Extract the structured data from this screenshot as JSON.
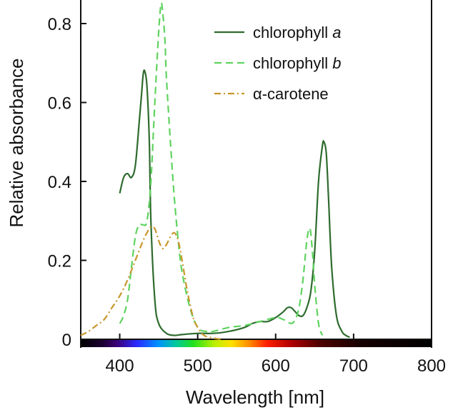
{
  "chart_data": {
    "type": "line",
    "title": "",
    "xlabel": "Wavelength [nm]",
    "ylabel": "Relative absorbance",
    "xlim": [
      350,
      800
    ],
    "ylim": [
      0,
      0.86
    ],
    "x_ticks": [
      400,
      500,
      600,
      700,
      800
    ],
    "x_tick_labels": [
      "400",
      "500",
      "600",
      "700",
      "800"
    ],
    "y_ticks": [
      0,
      0.2,
      0.4,
      0.6,
      0.8
    ],
    "y_tick_labels": [
      "0",
      "0.2",
      "0.4",
      "0.6",
      "0.8"
    ],
    "legend_position": "top-right",
    "colorbar": "visible spectrum strip along x-axis",
    "series": [
      {
        "name": "chlorophyll a",
        "name_prefix": "chlorophyll ",
        "name_italic": "a",
        "color": "#2e6b2e",
        "style": "solid",
        "x": [
          400,
          405,
          410,
          415,
          420,
          425,
          428,
          430,
          432,
          435,
          438,
          440,
          445,
          450,
          460,
          470,
          480,
          500,
          520,
          540,
          560,
          570,
          580,
          590,
          600,
          610,
          615,
          620,
          625,
          630,
          635,
          640,
          645,
          650,
          655,
          660,
          662,
          665,
          668,
          672,
          678,
          685,
          690,
          695
        ],
        "y": [
          0.37,
          0.41,
          0.42,
          0.41,
          0.44,
          0.55,
          0.62,
          0.67,
          0.68,
          0.64,
          0.5,
          0.3,
          0.1,
          0.04,
          0.015,
          0.01,
          0.012,
          0.015,
          0.015,
          0.02,
          0.03,
          0.04,
          0.045,
          0.045,
          0.055,
          0.07,
          0.08,
          0.08,
          0.07,
          0.06,
          0.06,
          0.08,
          0.12,
          0.22,
          0.4,
          0.49,
          0.5,
          0.47,
          0.35,
          0.18,
          0.06,
          0.02,
          0.01,
          0.005
        ]
      },
      {
        "name": "chlorophyll b",
        "name_prefix": "chlorophyll ",
        "name_italic": "b",
        "color": "#5fd35f",
        "style": "dashed",
        "x": [
          400,
          405,
          410,
          415,
          420,
          425,
          430,
          435,
          440,
          445,
          450,
          453,
          455,
          458,
          460,
          465,
          470,
          475,
          480,
          490,
          500,
          510,
          520,
          540,
          560,
          580,
          600,
          610,
          620,
          625,
          630,
          635,
          640,
          643,
          645,
          648,
          650,
          655,
          660
        ],
        "y": [
          0.04,
          0.06,
          0.1,
          0.18,
          0.26,
          0.29,
          0.29,
          0.3,
          0.4,
          0.6,
          0.78,
          0.85,
          0.83,
          0.76,
          0.66,
          0.5,
          0.36,
          0.25,
          0.17,
          0.08,
          0.03,
          0.02,
          0.02,
          0.03,
          0.035,
          0.045,
          0.055,
          0.05,
          0.04,
          0.05,
          0.08,
          0.15,
          0.25,
          0.28,
          0.27,
          0.2,
          0.14,
          0.04,
          0.01
        ]
      },
      {
        "name": "α-carotene",
        "name_prefix": "α-carotene",
        "name_italic": "",
        "color": "#c8962d",
        "style": "dashdot",
        "x": [
          350,
          360,
          370,
          380,
          390,
          400,
          410,
          420,
          430,
          435,
          440,
          445,
          450,
          455,
          460,
          465,
          470,
          475,
          480,
          485,
          490,
          495,
          500,
          505,
          510,
          520,
          530
        ],
        "y": [
          0.01,
          0.02,
          0.035,
          0.05,
          0.08,
          0.11,
          0.15,
          0.2,
          0.25,
          0.27,
          0.285,
          0.28,
          0.25,
          0.23,
          0.24,
          0.26,
          0.27,
          0.25,
          0.2,
          0.14,
          0.09,
          0.05,
          0.03,
          0.015,
          0.008,
          0.003,
          0.0
        ]
      }
    ]
  }
}
